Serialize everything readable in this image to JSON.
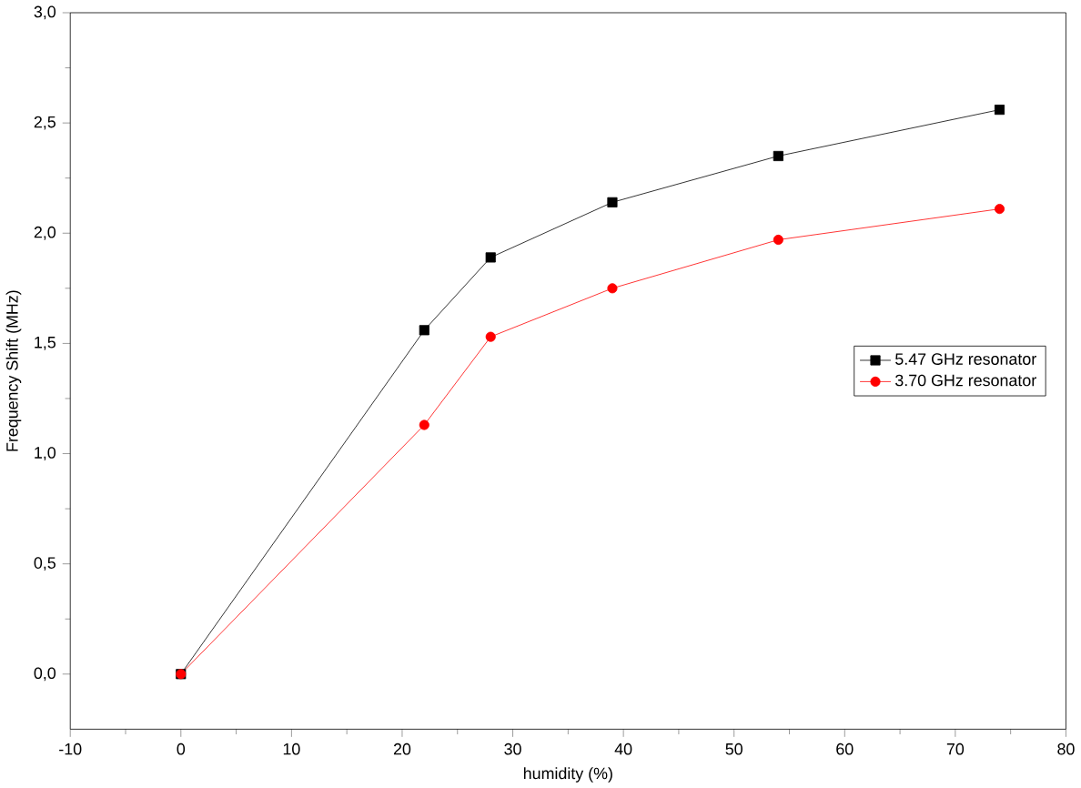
{
  "chart_data": {
    "type": "line",
    "xlabel": "humidity (%)",
    "ylabel": "Frequency Shift (MHz)",
    "x": [
      0,
      22,
      28,
      39,
      54,
      74
    ],
    "series": [
      {
        "name": "5.47 GHz resonator",
        "color": "#000000",
        "marker": "square",
        "values": [
          0,
          1.56,
          1.89,
          2.14,
          2.35,
          2.56
        ]
      },
      {
        "name": "3.70 GHz resonator",
        "color": "#ff0000",
        "marker": "circle",
        "values": [
          0,
          1.13,
          1.53,
          1.75,
          1.97,
          2.11
        ]
      }
    ],
    "xlim": [
      -10,
      80
    ],
    "xticks": [
      -10,
      0,
      10,
      20,
      30,
      40,
      50,
      60,
      70,
      80
    ],
    "ylim": [
      -0.25,
      3.0
    ],
    "yticks": [
      {
        "value": 0,
        "label": "0,0"
      },
      {
        "value": 0.5,
        "label": "0,5"
      },
      {
        "value": 1,
        "label": "1,0"
      },
      {
        "value": 1.5,
        "label": "1,5"
      },
      {
        "value": 2,
        "label": "2,0"
      },
      {
        "value": 2.5,
        "label": "2,5"
      },
      {
        "value": 3,
        "label": "3,0"
      }
    ],
    "grid": false,
    "legend": "right"
  }
}
